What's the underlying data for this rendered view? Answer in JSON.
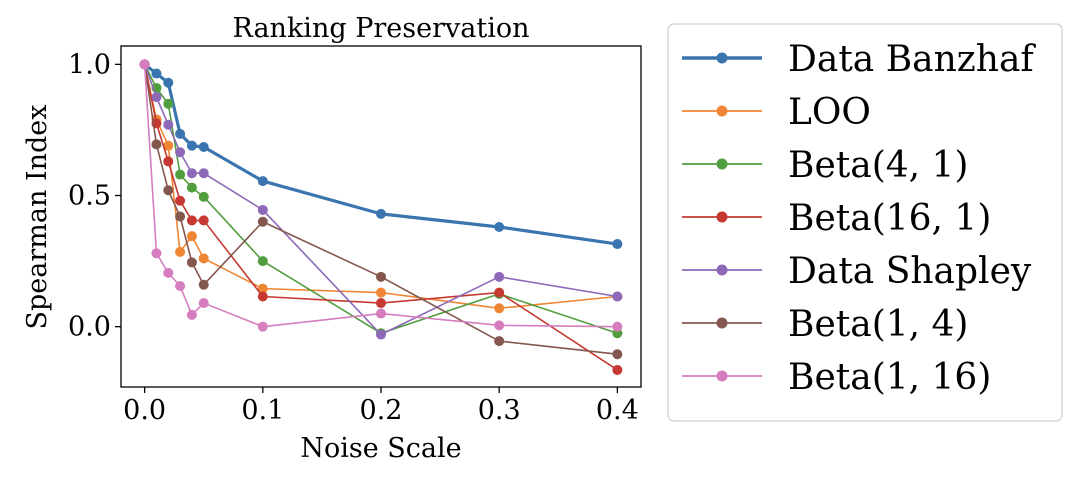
{
  "chart_data": {
    "type": "line",
    "title": "Ranking Preservation",
    "xlabel": "Noise Scale",
    "ylabel": "Spearman Index",
    "xlim": [
      -0.02,
      0.42
    ],
    "ylim": [
      -0.23,
      1.07
    ],
    "xticks": [
      0.0,
      0.1,
      0.2,
      0.3,
      0.4
    ],
    "xtick_labels": [
      "0.0",
      "0.1",
      "0.2",
      "0.3",
      "0.4"
    ],
    "yticks": [
      0.0,
      0.5,
      1.0
    ],
    "ytick_labels": [
      "0.0",
      "0.5",
      "1.0"
    ],
    "grid": false,
    "legend_position": "outside-right",
    "x": [
      0.0,
      0.01,
      0.02,
      0.03,
      0.04,
      0.05,
      0.1,
      0.2,
      0.3,
      0.4
    ],
    "series": [
      {
        "name": "Data Banzhaf",
        "color": "#3b75af",
        "emphasis": true,
        "values": [
          1.0,
          0.965,
          0.93,
          0.735,
          0.69,
          0.685,
          0.555,
          0.43,
          0.38,
          0.315
        ]
      },
      {
        "name": "LOO",
        "color": "#ef8636",
        "values": [
          1.0,
          0.79,
          0.69,
          0.285,
          0.345,
          0.26,
          0.145,
          0.13,
          0.07,
          0.115
        ]
      },
      {
        "name": "Beta(4, 1)",
        "color": "#519e3e",
        "values": [
          1.0,
          0.91,
          0.85,
          0.58,
          0.53,
          0.495,
          0.25,
          -0.025,
          0.125,
          -0.025
        ]
      },
      {
        "name": "Beta(16, 1)",
        "color": "#c53932",
        "values": [
          1.0,
          0.775,
          0.63,
          0.48,
          0.405,
          0.405,
          0.115,
          0.09,
          0.13,
          -0.165
        ]
      },
      {
        "name": "Data Shapley",
        "color": "#8d69b8",
        "values": [
          1.0,
          0.875,
          0.77,
          0.665,
          0.585,
          0.585,
          0.445,
          -0.03,
          0.19,
          0.115
        ]
      },
      {
        "name": "Beta(1, 4)",
        "color": "#84584e",
        "values": [
          1.0,
          0.695,
          0.52,
          0.42,
          0.245,
          0.16,
          0.4,
          0.19,
          -0.055,
          -0.105
        ]
      },
      {
        "name": "Beta(1, 16)",
        "color": "#d57dbe",
        "values": [
          1.0,
          0.28,
          0.205,
          0.155,
          0.045,
          0.09,
          0.0,
          0.05,
          0.005,
          0.0
        ]
      }
    ]
  }
}
